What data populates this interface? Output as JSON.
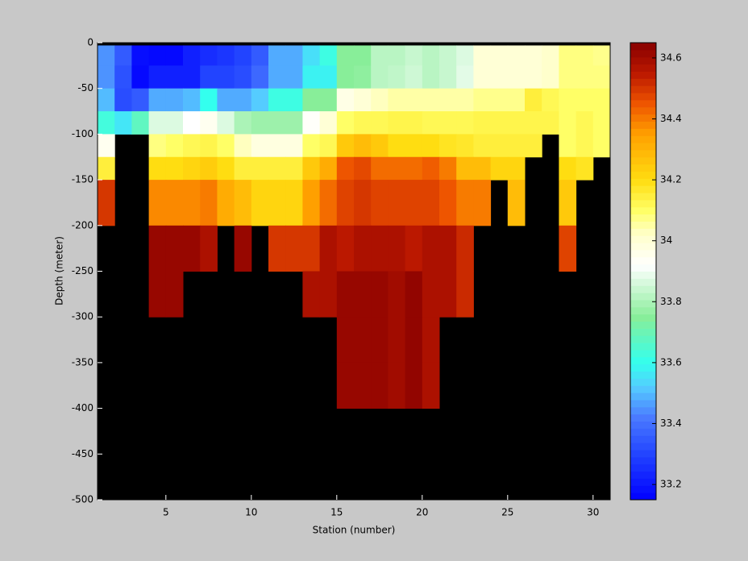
{
  "chart_data": {
    "type": "heatmap",
    "x_label": "Station (number)",
    "y_label": "Depth (meter)",
    "x_edges": [
      1,
      2,
      3,
      4,
      5,
      6,
      7,
      8,
      9,
      10,
      11,
      12,
      13,
      14,
      15,
      16,
      17,
      18,
      19,
      20,
      21,
      22,
      23,
      24,
      25,
      26,
      27,
      28,
      29,
      30,
      31
    ],
    "y_edges": [
      -3,
      -25,
      -50,
      -75,
      -100,
      -125,
      -150,
      -200,
      -250,
      -300,
      -350,
      -400
    ],
    "z": [
      [
        33.45,
        33.35,
        33.18,
        33.17,
        33.17,
        33.22,
        33.25,
        33.27,
        33.3,
        33.35,
        33.48,
        33.48,
        33.55,
        33.62,
        33.75,
        33.75,
        33.82,
        33.82,
        33.84,
        33.82,
        33.84,
        33.87,
        34.0,
        34.0,
        34.0,
        34.0,
        34.02,
        34.08,
        34.08,
        34.07
      ],
      [
        33.45,
        33.33,
        33.17,
        33.22,
        33.22,
        33.22,
        33.3,
        33.3,
        33.32,
        33.38,
        33.48,
        33.48,
        33.58,
        33.58,
        33.75,
        33.76,
        33.82,
        33.83,
        33.85,
        33.82,
        33.84,
        33.88,
        34.0,
        34.0,
        34.0,
        34.0,
        34.02,
        34.08,
        34.08,
        34.08
      ],
      [
        33.5,
        33.32,
        33.35,
        33.48,
        33.48,
        33.5,
        33.6,
        33.48,
        33.48,
        33.52,
        33.62,
        33.62,
        33.75,
        33.75,
        33.97,
        34.0,
        34.03,
        34.05,
        34.05,
        34.05,
        34.05,
        34.05,
        34.07,
        34.07,
        34.07,
        34.15,
        34.12,
        34.1,
        34.1,
        34.1
      ],
      [
        33.63,
        33.56,
        33.68,
        33.87,
        33.87,
        33.92,
        33.95,
        33.87,
        33.8,
        33.78,
        33.78,
        33.78,
        33.93,
        34.0,
        34.1,
        34.12,
        34.12,
        34.13,
        34.13,
        34.12,
        34.12,
        34.12,
        34.13,
        34.13,
        34.13,
        34.13,
        34.13,
        34.1,
        34.12,
        34.1
      ],
      [
        33.95,
        null,
        null,
        34.08,
        34.1,
        34.12,
        34.13,
        34.1,
        34.03,
        33.98,
        33.98,
        33.98,
        34.1,
        34.12,
        34.25,
        34.28,
        34.25,
        34.2,
        34.2,
        34.2,
        34.18,
        34.17,
        34.15,
        34.15,
        34.15,
        34.15,
        null,
        34.1,
        34.12,
        34.1
      ],
      [
        34.15,
        null,
        null,
        34.2,
        34.2,
        34.22,
        34.24,
        34.2,
        34.15,
        34.15,
        34.15,
        34.15,
        34.25,
        34.32,
        34.45,
        34.47,
        34.42,
        34.42,
        34.42,
        34.44,
        34.4,
        34.28,
        34.28,
        34.22,
        34.22,
        null,
        null,
        34.2,
        34.18,
        null
      ],
      [
        34.5,
        null,
        null,
        34.38,
        34.38,
        34.38,
        34.4,
        34.32,
        34.28,
        34.22,
        34.22,
        34.22,
        34.35,
        34.42,
        34.48,
        34.5,
        34.48,
        34.48,
        34.48,
        34.48,
        34.45,
        34.4,
        34.4,
        null,
        34.28,
        null,
        null,
        34.25,
        null,
        null
      ],
      [
        null,
        null,
        null,
        34.62,
        34.62,
        34.62,
        34.58,
        null,
        34.62,
        null,
        34.5,
        34.5,
        34.5,
        34.58,
        34.55,
        34.58,
        34.58,
        34.58,
        34.55,
        34.58,
        34.58,
        34.52,
        null,
        null,
        null,
        null,
        null,
        34.48,
        null,
        null
      ],
      [
        null,
        null,
        null,
        34.62,
        34.62,
        null,
        null,
        null,
        null,
        null,
        null,
        null,
        34.58,
        34.58,
        34.62,
        34.62,
        34.62,
        34.6,
        34.63,
        34.58,
        34.58,
        34.52,
        null,
        null,
        null,
        null,
        null,
        null,
        null,
        null
      ],
      [
        null,
        null,
        null,
        null,
        null,
        null,
        null,
        null,
        null,
        null,
        null,
        null,
        null,
        null,
        34.62,
        34.62,
        34.62,
        34.6,
        34.63,
        34.58,
        null,
        null,
        null,
        null,
        null,
        null,
        null,
        null,
        null,
        null
      ],
      [
        null,
        null,
        null,
        null,
        null,
        null,
        null,
        null,
        null,
        null,
        null,
        null,
        null,
        null,
        34.62,
        34.62,
        34.62,
        34.6,
        34.63,
        34.58,
        null,
        null,
        null,
        null,
        null,
        null,
        null,
        null,
        null,
        null
      ]
    ],
    "xlim": [
      1,
      31
    ],
    "xticks": [
      5,
      10,
      15,
      20,
      25,
      30
    ],
    "ylim": [
      -500,
      0
    ],
    "yticks": [
      0,
      -50,
      -100,
      -150,
      -200,
      -250,
      -300,
      -350,
      -400,
      -450,
      -500
    ],
    "clim": [
      33.15,
      34.65
    ],
    "cticks": [
      33.2,
      33.4,
      33.6,
      33.8,
      34,
      34.2,
      34.4,
      34.6
    ],
    "missing_color": "#000000",
    "colormap": [
      [
        33.15,
        "#0000ff"
      ],
      [
        33.3,
        "#2244ff"
      ],
      [
        33.42,
        "#4a7aff"
      ],
      [
        33.52,
        "#55ccff"
      ],
      [
        33.6,
        "#33ffee"
      ],
      [
        33.75,
        "#88ee99"
      ],
      [
        33.92,
        "#ffffff"
      ],
      [
        34.02,
        "#ffffcc"
      ],
      [
        34.1,
        "#ffff66"
      ],
      [
        34.2,
        "#ffdd11"
      ],
      [
        34.35,
        "#ffa000"
      ],
      [
        34.45,
        "#ee5500"
      ],
      [
        34.55,
        "#bb1800"
      ],
      [
        34.65,
        "#880000"
      ]
    ]
  }
}
